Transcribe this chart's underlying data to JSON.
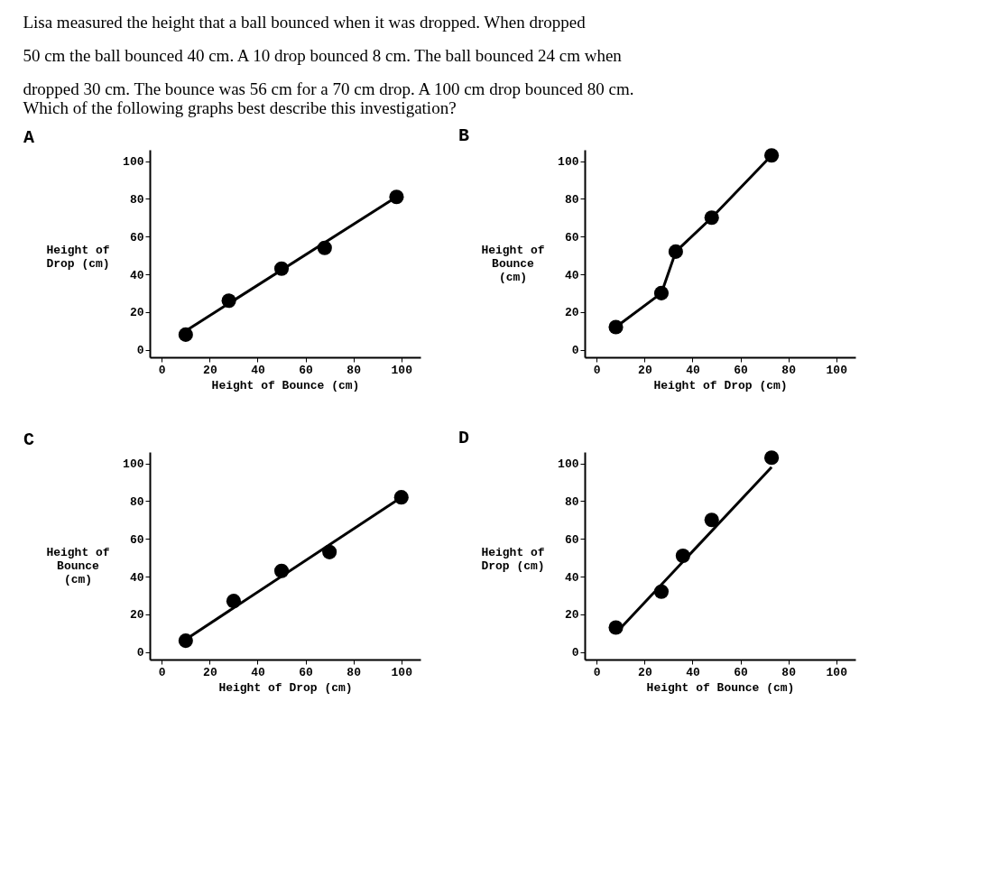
{
  "chart_data": [
    {
      "type": "other",
      "title": "Lisa measured the height that a ball bounced when it was dropped. When dropped\n50 cm the ball bounced 40 cm. A 10 drop bounced 8 cm. The ball bounced 24 cm when\ndropped 30 cm. The bounce was 56 cm for a 70 cm drop. A 100 cm drop bounced 80 cm.",
      "subtitle": "Which of the following graphs best describe this investigation?"
    },
    {
      "type": "scatter",
      "title": "A",
      "xlabel": "Height of Bounce (cm)",
      "ylabel": "Height of Drop (cm)",
      "marker": "circle",
      "grid": false,
      "xlim": [
        -5,
        108
      ],
      "ylim": [
        -4,
        106
      ],
      "xticks": [
        0,
        20,
        40,
        60,
        80,
        100
      ],
      "yticks": [
        0,
        20,
        40,
        60,
        80,
        100
      ],
      "series": [
        {
          "type": "scatter",
          "color": "#000000",
          "x": [
            10,
            28,
            50,
            68,
            98
          ],
          "values": [
            8,
            26,
            43,
            54,
            81
          ]
        },
        {
          "type": "line",
          "marker": "none",
          "color": "#000000",
          "x": [
            10,
            98
          ],
          "values": [
            10,
            81
          ]
        }
      ]
    },
    {
      "type": "line",
      "title": "B",
      "xlabel": "Height of Drop (cm)",
      "ylabel": "Height of Bounce (cm)",
      "marker": "circle",
      "grid": false,
      "xlim": [
        -5,
        108
      ],
      "ylim": [
        -4,
        106
      ],
      "xticks": [
        0,
        20,
        40,
        60,
        80,
        100
      ],
      "yticks": [
        0,
        20,
        40,
        60,
        80,
        100
      ],
      "series": [
        {
          "type": "line",
          "color": "#000000",
          "x": [
            8,
            27,
            33,
            48,
            73
          ],
          "values": [
            12,
            30,
            52,
            70,
            103
          ]
        }
      ]
    },
    {
      "type": "scatter",
      "title": "C",
      "xlabel": "Height of Drop (cm)",
      "ylabel": "Height of Bounce (cm)",
      "marker": "circle",
      "grid": false,
      "xlim": [
        -5,
        108
      ],
      "ylim": [
        -4,
        106
      ],
      "xticks": [
        0,
        20,
        40,
        60,
        80,
        100
      ],
      "yticks": [
        0,
        20,
        40,
        60,
        80,
        100
      ],
      "series": [
        {
          "type": "scatter",
          "color": "#000000",
          "x": [
            10,
            30,
            50,
            70,
            100
          ],
          "values": [
            6,
            27,
            43,
            53,
            82
          ]
        },
        {
          "type": "line",
          "marker": "none",
          "color": "#000000",
          "x": [
            8,
            100
          ],
          "values": [
            5,
            82
          ]
        }
      ]
    },
    {
      "type": "scatter",
      "title": "D",
      "xlabel": "Height of Bounce (cm)",
      "ylabel": "Height of Drop (cm)",
      "marker": "circle",
      "grid": false,
      "xlim": [
        -5,
        108
      ],
      "ylim": [
        -4,
        106
      ],
      "xticks": [
        0,
        20,
        40,
        60,
        80,
        100
      ],
      "yticks": [
        0,
        20,
        40,
        60,
        80,
        100
      ],
      "series": [
        {
          "type": "scatter",
          "color": "#000000",
          "x": [
            8,
            27,
            36,
            48,
            73
          ],
          "values": [
            13,
            32,
            51,
            70,
            103
          ]
        },
        {
          "type": "line",
          "marker": "none",
          "color": "#000000",
          "x": [
            8,
            73
          ],
          "values": [
            10,
            98
          ]
        }
      ]
    }
  ]
}
